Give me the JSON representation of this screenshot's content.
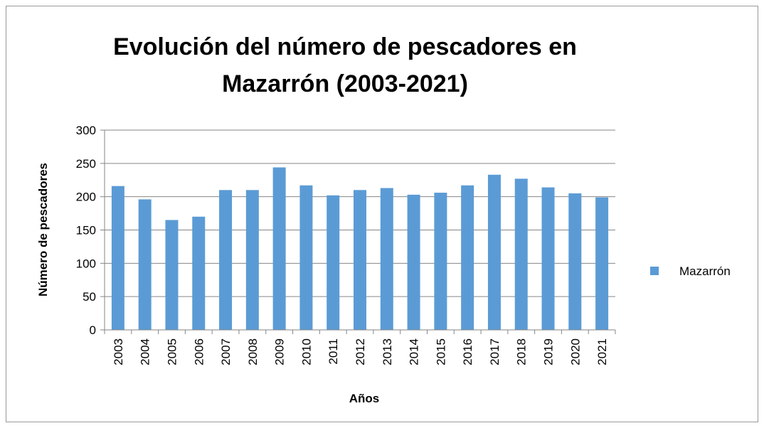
{
  "chart_data": {
    "type": "bar",
    "title": "Evolución del número de pescadores en Mazarrón (2003-2021)",
    "x_label": "Años",
    "y_label": "Número de pescadores",
    "categories": [
      "2003",
      "2004",
      "2005",
      "2006",
      "2007",
      "2008",
      "2009",
      "2010",
      "2011",
      "2012",
      "2013",
      "2014",
      "2015",
      "2016",
      "2017",
      "2018",
      "2019",
      "2020",
      "2021"
    ],
    "series": [
      {
        "name": "Mazarrón",
        "color": "#5b9bd5",
        "values": [
          216,
          196,
          165,
          170,
          210,
          210,
          244,
          217,
          202,
          210,
          213,
          203,
          206,
          217,
          233,
          227,
          214,
          205,
          199
        ]
      }
    ],
    "ylim": [
      0,
      300
    ],
    "yticks": [
      0,
      50,
      100,
      150,
      200,
      250,
      300
    ],
    "grid": true,
    "legend": "right"
  }
}
